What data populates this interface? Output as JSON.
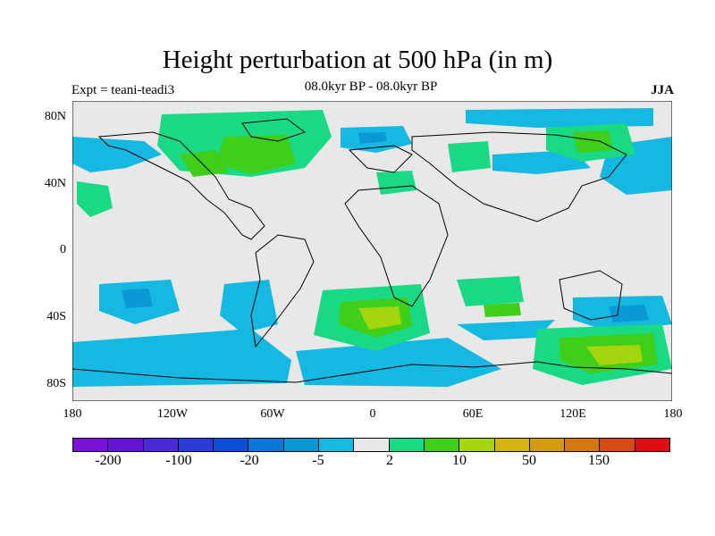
{
  "title": "Height perturbation at 500 hPa (in m)",
  "subtitle": "08.0kyr BP - 08.0kyr BP",
  "experiment": "Expt = teani-teadi3",
  "season": "JJA",
  "lat_labels": [
    "80N",
    "40N",
    "0",
    "40S",
    "80S"
  ],
  "lon_labels": [
    "180",
    "120W",
    "60W",
    "0",
    "60E",
    "120E",
    "180"
  ],
  "colorbar": {
    "colors": [
      "#7b10d6",
      "#6514d6",
      "#4a2ad6",
      "#2a3ed6",
      "#0d4fd6",
      "#0a76d6",
      "#0a98d6",
      "#14b8e0",
      "#e8e8e8",
      "#19d985",
      "#3fce1a",
      "#a4d60f",
      "#d6b40f",
      "#d69a0f",
      "#d6760f",
      "#d64a16",
      "#e00f0f"
    ],
    "labels": [
      "-200",
      "-100",
      "-20",
      "-5",
      "2",
      "10",
      "50",
      "150"
    ]
  },
  "palette": {
    "neutral": "#e8e8e8",
    "neg_light": "#14b8e0",
    "neg_mid": "#0a98d6",
    "pos_light": "#19d985",
    "pos_mid": "#3fce1a",
    "pos_high": "#a4d60f"
  }
}
